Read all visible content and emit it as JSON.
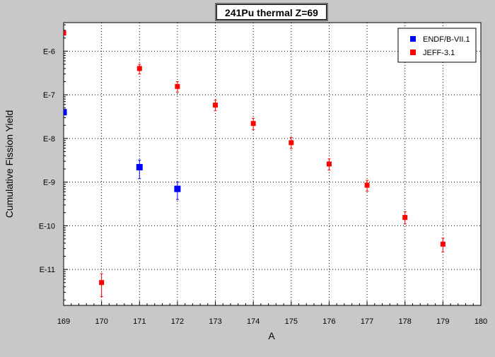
{
  "chart_data": {
    "type": "scatter",
    "title": "241Pu thermal Z=69",
    "xlabel": "A",
    "ylabel": "Cumulative Fission Yield",
    "x_scale": "linear",
    "y_scale": "log",
    "xlim": [
      169,
      180
    ],
    "ylim": [
      1.5e-12,
      4.5e-06
    ],
    "x_ticks": [
      169,
      170,
      171,
      172,
      173,
      174,
      175,
      176,
      177,
      178,
      179,
      180
    ],
    "y_ticks": [
      {
        "value": 1e-11,
        "label": "E-11"
      },
      {
        "value": 1e-10,
        "label": "E-10"
      },
      {
        "value": 1e-09,
        "label": "E-9"
      },
      {
        "value": 1e-08,
        "label": "E-8"
      },
      {
        "value": 1e-07,
        "label": "E-7"
      },
      {
        "value": 1e-06,
        "label": "E-6"
      }
    ],
    "grid": true,
    "legend": "top-right",
    "series": [
      {
        "name": "ENDF/B-VII.1",
        "color": "#0000ff",
        "points": [
          {
            "x": 169,
            "y": 4e-08,
            "lo": null,
            "hi": null
          },
          {
            "x": 171,
            "y": 2.2e-09,
            "lo": 1.2e-09,
            "hi": 3.2e-09
          },
          {
            "x": 172,
            "y": 7e-10,
            "lo": 4e-10,
            "hi": 1e-09
          }
        ]
      },
      {
        "name": "JEFF-3.1",
        "color": "#ff0000",
        "points": [
          {
            "x": 169,
            "y": 2.6e-06,
            "lo": null,
            "hi": null
          },
          {
            "x": 170,
            "y": 5e-12,
            "lo": 2.4e-12,
            "hi": 8e-12
          },
          {
            "x": 171,
            "y": 4e-07,
            "lo": 3e-07,
            "hi": 5e-07
          },
          {
            "x": 172,
            "y": 1.55e-07,
            "lo": 1.15e-07,
            "hi": 2e-07
          },
          {
            "x": 173,
            "y": 5.8e-08,
            "lo": 4.3e-08,
            "hi": 7.5e-08
          },
          {
            "x": 174,
            "y": 2.2e-08,
            "lo": 1.6e-08,
            "hi": 2.9e-08
          },
          {
            "x": 175,
            "y": 8e-09,
            "lo": 5.9e-09,
            "hi": 1.05e-08
          },
          {
            "x": 176,
            "y": 2.6e-09,
            "lo": 1.9e-09,
            "hi": 3.4e-09
          },
          {
            "x": 177,
            "y": 8.5e-10,
            "lo": 6.2e-10,
            "hi": 1.1e-09
          },
          {
            "x": 178,
            "y": 1.55e-10,
            "lo": 1.1e-10,
            "hi": 2.1e-10
          },
          {
            "x": 179,
            "y": 3.8e-11,
            "lo": 2.5e-11,
            "hi": 5.2e-11
          }
        ]
      }
    ]
  }
}
